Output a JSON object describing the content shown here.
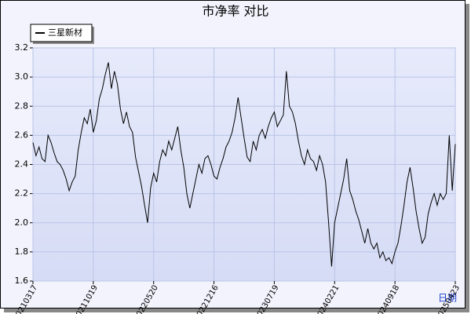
{
  "chart_data": {
    "type": "line",
    "title": "市净率  对比",
    "x_label": "日期",
    "categories": [
      "20210317",
      null,
      null,
      null,
      null,
      null,
      null,
      null,
      null,
      null,
      null,
      null,
      null,
      null,
      null,
      null,
      null,
      null,
      null,
      null,
      "20211019",
      null,
      null,
      null,
      null,
      null,
      null,
      null,
      null,
      null,
      null,
      null,
      null,
      null,
      null,
      null,
      null,
      null,
      null,
      null,
      "20220520",
      null,
      null,
      null,
      null,
      null,
      null,
      null,
      null,
      null,
      null,
      null,
      null,
      null,
      null,
      null,
      null,
      null,
      null,
      null,
      "20221216",
      null,
      null,
      null,
      null,
      null,
      null,
      null,
      null,
      null,
      null,
      null,
      null,
      null,
      null,
      null,
      null,
      null,
      null,
      null,
      "20230719",
      null,
      null,
      null,
      null,
      null,
      null,
      null,
      null,
      null,
      null,
      null,
      null,
      null,
      null,
      null,
      null,
      null,
      null,
      null,
      "20240221",
      null,
      null,
      null,
      null,
      null,
      null,
      null,
      null,
      null,
      null,
      null,
      null,
      null,
      null,
      null,
      null,
      null,
      null,
      null,
      "20240918",
      null,
      null,
      null,
      null,
      null,
      null,
      null,
      null,
      null,
      null,
      null,
      null,
      null,
      null,
      null,
      null,
      null,
      null,
      null,
      "20250423"
    ],
    "series": [
      {
        "name": "三星新材",
        "color": "#000000",
        "values": [
          2.55,
          2.46,
          2.52,
          2.44,
          2.42,
          2.6,
          2.55,
          2.48,
          2.42,
          2.4,
          2.36,
          2.3,
          2.22,
          2.28,
          2.32,
          2.5,
          2.62,
          2.72,
          2.68,
          2.78,
          2.62,
          2.7,
          2.85,
          2.92,
          3.02,
          3.1,
          2.92,
          3.04,
          2.95,
          2.78,
          2.68,
          2.76,
          2.66,
          2.62,
          2.45,
          2.35,
          2.25,
          2.12,
          2.0,
          2.24,
          2.34,
          2.28,
          2.42,
          2.5,
          2.46,
          2.56,
          2.5,
          2.58,
          2.66,
          2.5,
          2.38,
          2.2,
          2.1,
          2.2,
          2.3,
          2.4,
          2.34,
          2.44,
          2.46,
          2.4,
          2.32,
          2.3,
          2.38,
          2.44,
          2.52,
          2.56,
          2.62,
          2.72,
          2.86,
          2.72,
          2.58,
          2.45,
          2.42,
          2.56,
          2.5,
          2.6,
          2.64,
          2.58,
          2.66,
          2.72,
          2.76,
          2.66,
          2.7,
          2.74,
          3.04,
          2.8,
          2.76,
          2.68,
          2.56,
          2.46,
          2.4,
          2.5,
          2.44,
          2.42,
          2.36,
          2.46,
          2.4,
          2.28,
          2.0,
          1.7,
          2.0,
          2.1,
          2.2,
          2.3,
          2.44,
          2.22,
          2.16,
          2.08,
          2.02,
          1.94,
          1.86,
          1.96,
          1.86,
          1.82,
          1.86,
          1.76,
          1.8,
          1.74,
          1.76,
          1.72,
          1.8,
          1.86,
          1.98,
          2.12,
          2.28,
          2.38,
          2.24,
          2.08,
          1.96,
          1.86,
          1.9,
          2.06,
          2.14,
          2.2,
          2.12,
          2.2,
          2.16,
          2.2,
          2.6,
          2.22,
          2.54
        ]
      }
    ],
    "ylim": [
      1.6,
      3.2
    ],
    "yticks": [
      1.6,
      1.8,
      {
        "value": 2,
        "label": "2.0"
      },
      2.2,
      2.4,
      2.6,
      2.8,
      {
        "value": 3,
        "label": "3.0"
      },
      3.2
    ],
    "grid": true,
    "legend": "upper left"
  }
}
